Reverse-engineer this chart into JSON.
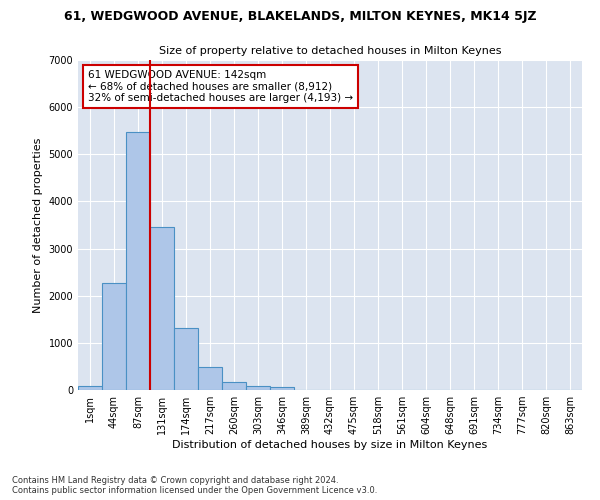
{
  "title": "61, WEDGWOOD AVENUE, BLAKELANDS, MILTON KEYNES, MK14 5JZ",
  "subtitle": "Size of property relative to detached houses in Milton Keynes",
  "xlabel": "Distribution of detached houses by size in Milton Keynes",
  "ylabel": "Number of detached properties",
  "footnote1": "Contains HM Land Registry data © Crown copyright and database right 2024.",
  "footnote2": "Contains public sector information licensed under the Open Government Licence v3.0.",
  "bar_labels": [
    "1sqm",
    "44sqm",
    "87sqm",
    "131sqm",
    "174sqm",
    "217sqm",
    "260sqm",
    "303sqm",
    "346sqm",
    "389sqm",
    "432sqm",
    "475sqm",
    "518sqm",
    "561sqm",
    "604sqm",
    "648sqm",
    "691sqm",
    "734sqm",
    "777sqm",
    "820sqm",
    "863sqm"
  ],
  "bar_values": [
    75,
    2280,
    5480,
    3450,
    1310,
    480,
    160,
    80,
    60,
    0,
    0,
    0,
    0,
    0,
    0,
    0,
    0,
    0,
    0,
    0,
    0
  ],
  "bar_color": "#aec6e8",
  "bar_edge_color": "#4a90c4",
  "background_color": "#dce4f0",
  "grid_color": "#ffffff",
  "fig_background": "#ffffff",
  "vline_color": "#cc0000",
  "annotation_text": "61 WEDGWOOD AVENUE: 142sqm\n← 68% of detached houses are smaller (8,912)\n32% of semi-detached houses are larger (4,193) →",
  "annotation_box_color": "#ffffff",
  "annotation_box_edge": "#cc0000",
  "ylim": [
    0,
    7000
  ],
  "yticks": [
    0,
    1000,
    2000,
    3000,
    4000,
    5000,
    6000,
    7000
  ],
  "title_fontsize": 9,
  "subtitle_fontsize": 8,
  "ylabel_fontsize": 8,
  "xlabel_fontsize": 8,
  "tick_fontsize": 7,
  "footnote_fontsize": 6
}
